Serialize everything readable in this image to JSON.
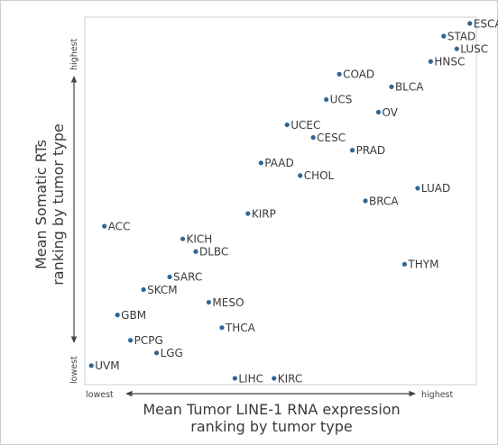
{
  "chart_data": {
    "type": "scatter",
    "xlabel": [
      "Mean Tumor LINE-1 RNA expression",
      "ranking by tumor type"
    ],
    "ylabel": [
      "Mean Somatic RTs",
      "ranking by tumor type"
    ],
    "x_axis_ends": {
      "low": "lowest",
      "high": "highest"
    },
    "y_axis_ends": {
      "low": "lowest",
      "high": "highest"
    },
    "xlim": [
      0.5,
      30.5
    ],
    "ylim": [
      0.5,
      29.5
    ],
    "grid": false,
    "point_color": "#2f6694",
    "points": [
      {
        "label": "ESCA",
        "x": 30,
        "y": 29
      },
      {
        "label": "STAD",
        "x": 28,
        "y": 28
      },
      {
        "label": "LUSC",
        "x": 29,
        "y": 27
      },
      {
        "label": "HNSC",
        "x": 27,
        "y": 26
      },
      {
        "label": "COAD",
        "x": 20,
        "y": 25
      },
      {
        "label": "BLCA",
        "x": 24,
        "y": 24
      },
      {
        "label": "UCS",
        "x": 19,
        "y": 23
      },
      {
        "label": "OV",
        "x": 23,
        "y": 22
      },
      {
        "label": "UCEC",
        "x": 16,
        "y": 21
      },
      {
        "label": "CESC",
        "x": 18,
        "y": 20
      },
      {
        "label": "PRAD",
        "x": 21,
        "y": 19
      },
      {
        "label": "PAAD",
        "x": 14,
        "y": 18
      },
      {
        "label": "CHOL",
        "x": 17,
        "y": 17
      },
      {
        "label": "LUAD",
        "x": 26,
        "y": 16
      },
      {
        "label": "BRCA",
        "x": 22,
        "y": 15
      },
      {
        "label": "KIRP",
        "x": 13,
        "y": 14
      },
      {
        "label": "ACC",
        "x": 2,
        "y": 13
      },
      {
        "label": "KICH",
        "x": 8,
        "y": 12
      },
      {
        "label": "DLBC",
        "x": 9,
        "y": 11
      },
      {
        "label": "THYM",
        "x": 25,
        "y": 10
      },
      {
        "label": "SARC",
        "x": 7,
        "y": 9
      },
      {
        "label": "SKCM",
        "x": 5,
        "y": 8
      },
      {
        "label": "MESO",
        "x": 10,
        "y": 7
      },
      {
        "label": "GBM",
        "x": 3,
        "y": 6
      },
      {
        "label": "THCA",
        "x": 11,
        "y": 5
      },
      {
        "label": "PCPG",
        "x": 4,
        "y": 4
      },
      {
        "label": "LGG",
        "x": 6,
        "y": 3
      },
      {
        "label": "UVM",
        "x": 1,
        "y": 2
      },
      {
        "label": "LIHC",
        "x": 12,
        "y": 1
      },
      {
        "label": "KIRC",
        "x": 15,
        "y": 1
      }
    ]
  }
}
